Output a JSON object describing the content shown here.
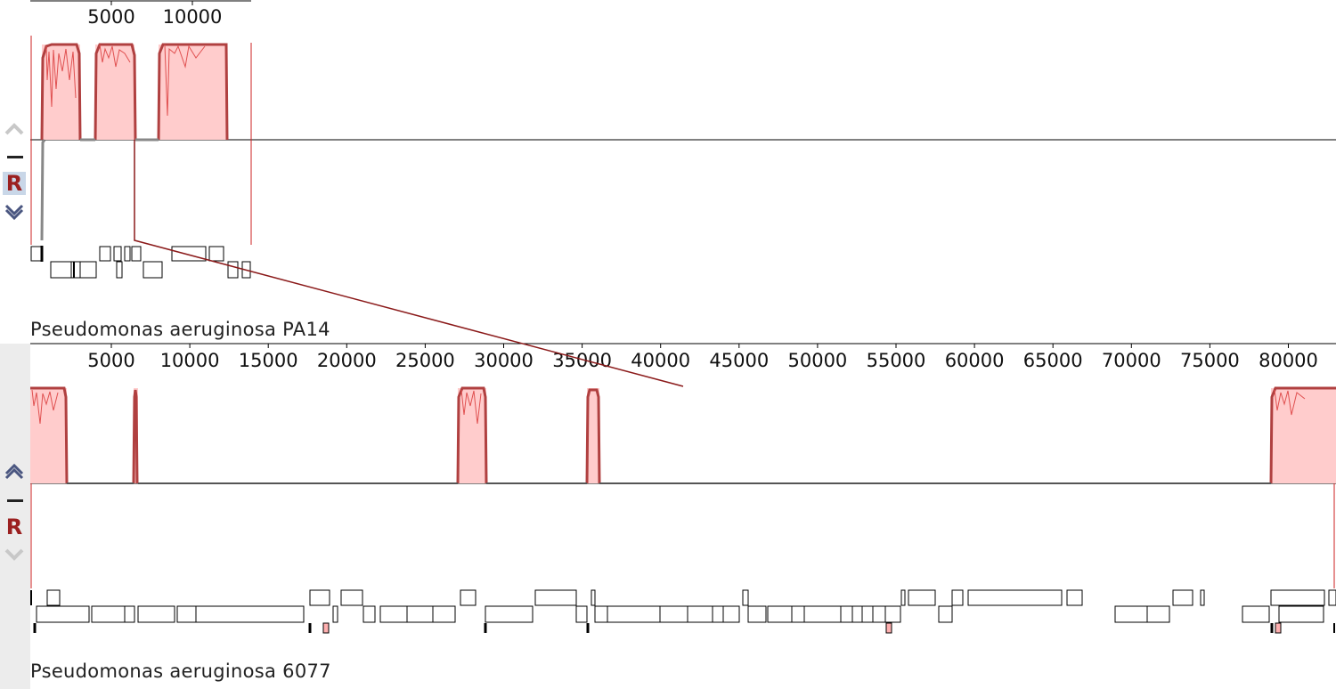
{
  "genomes": [
    {
      "name": "Pseudomonas aeruginosa PA14",
      "ruler_ticks": [
        "5000",
        "10000"
      ],
      "controls": {
        "up": "chevron-up",
        "minus": "minus",
        "reset": "R",
        "down": "chevron-down"
      },
      "colors": {
        "background": "#ececec",
        "block_fill": "#ffcccc",
        "block_edge": "#b04040",
        "profile": "#888888",
        "end_marker": "#cc2222"
      }
    },
    {
      "name": "Pseudomonas aeruginosa 6077",
      "ruler_ticks": [
        "5000",
        "10000",
        "15000",
        "20000",
        "25000",
        "30000",
        "35000",
        "40000",
        "45000",
        "50000",
        "55000",
        "60000",
        "65000",
        "70000",
        "75000",
        "80000"
      ],
      "controls": {
        "up": "chevron-up",
        "minus": "minus",
        "reset": "R",
        "down": "chevron-down"
      },
      "colors": {
        "background": "#ffffff",
        "block_fill": "#ffcccc",
        "block_edge": "#b04040",
        "profile": "#888888",
        "end_marker": "#cc2222"
      }
    }
  ],
  "connector_color": "#8b1a1a"
}
